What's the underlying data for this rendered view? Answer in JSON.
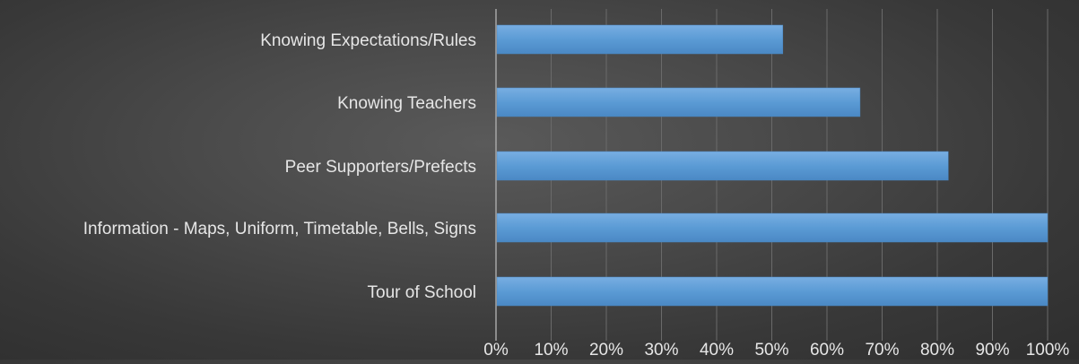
{
  "chart_data": {
    "type": "bar",
    "orientation": "horizontal",
    "categories": [
      "Knowing Expectations/Rules",
      "Knowing Teachers",
      "Peer Supporters/Prefects",
      "Information - Maps, Uniform, Timetable, Bells, Signs",
      "Tour of School"
    ],
    "values": [
      0.52,
      0.66,
      0.82,
      1.0,
      1.0
    ],
    "xlim": [
      0,
      1
    ],
    "xticks": [
      "0%",
      "10%",
      "20%",
      "30%",
      "40%",
      "50%",
      "60%",
      "70%",
      "80%",
      "90%",
      "100%"
    ],
    "title": "",
    "xlabel": "",
    "ylabel": "",
    "grid": "vertical",
    "legend": "none",
    "colors": {
      "bar": "#5b9bd5",
      "bar_light": "#78aee2",
      "bar_dark": "#4a88c4",
      "text": "#e6e6e6",
      "grid": "#6a6a6a",
      "axis": "#a6a6a6"
    }
  }
}
